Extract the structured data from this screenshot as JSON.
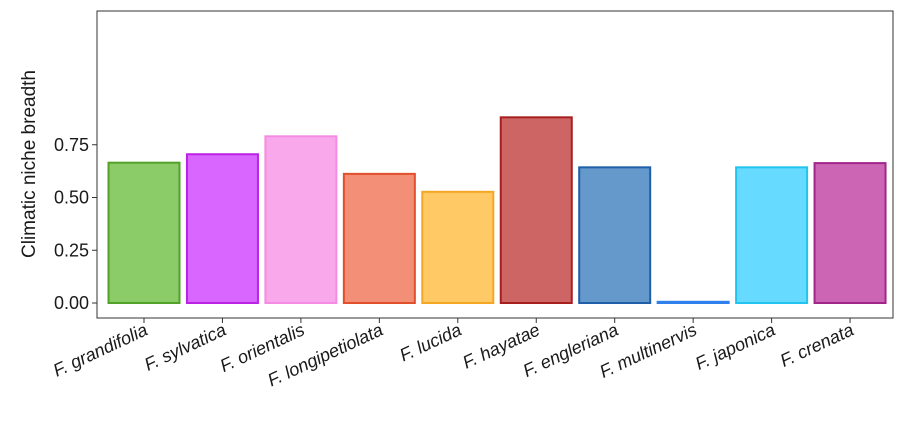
{
  "chart_data": {
    "type": "bar",
    "ylabel": "Climatic niche breadth",
    "ylim": [
      0,
      0.91
    ],
    "yticks": [
      "0.00",
      "0.25",
      "0.50",
      "0.75"
    ],
    "grid": false,
    "legend": "none",
    "categories": [
      "F. grandifolia",
      "F. sylvatica",
      "F. orientalis",
      "F. longipetiolata",
      "F. lucida",
      "F. hayatae",
      "F. engleriana",
      "F. multinervis",
      "F. japonica",
      "F. crenata"
    ],
    "values": [
      0.665,
      0.705,
      0.79,
      0.612,
      0.527,
      0.88,
      0.643,
      0.003,
      0.643,
      0.663
    ],
    "fill_colors": [
      "#8BCB68",
      "#D966FF",
      "#FAA8EC",
      "#F48F77",
      "#FFCA66",
      "#CD6565",
      "#6598CB",
      "#66AAFF",
      "#66DBFF",
      "#CB65B4"
    ],
    "stroke_colors": [
      "#52A229",
      "#BB22E6",
      "#F58BE3",
      "#E14F2C",
      "#F5A623",
      "#A61E1E",
      "#1F5FA8",
      "#2F80ED",
      "#22C3F0",
      "#A0268A"
    ]
  }
}
